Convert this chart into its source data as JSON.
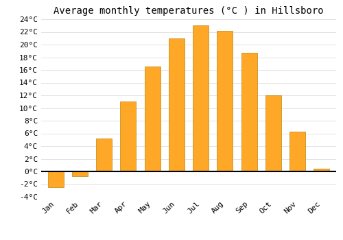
{
  "title": "Average monthly temperatures (°C ) in Hillsboro",
  "months": [
    "Jan",
    "Feb",
    "Mar",
    "Apr",
    "May",
    "Jun",
    "Jul",
    "Aug",
    "Sep",
    "Oct",
    "Nov",
    "Dec"
  ],
  "values": [
    -2.5,
    -0.8,
    5.2,
    11.0,
    16.5,
    21.0,
    23.0,
    22.2,
    18.7,
    12.0,
    6.3,
    0.4
  ],
  "bar_color": "#FFA726",
  "bar_edge_color": "#B8860B",
  "ylim": [
    -4,
    24
  ],
  "yticks": [
    -4,
    -2,
    0,
    2,
    4,
    6,
    8,
    10,
    12,
    14,
    16,
    18,
    20,
    22,
    24
  ],
  "background_color": "#ffffff",
  "grid_color": "#dddddd",
  "title_fontsize": 10,
  "tick_fontsize": 8,
  "font_family": "monospace"
}
